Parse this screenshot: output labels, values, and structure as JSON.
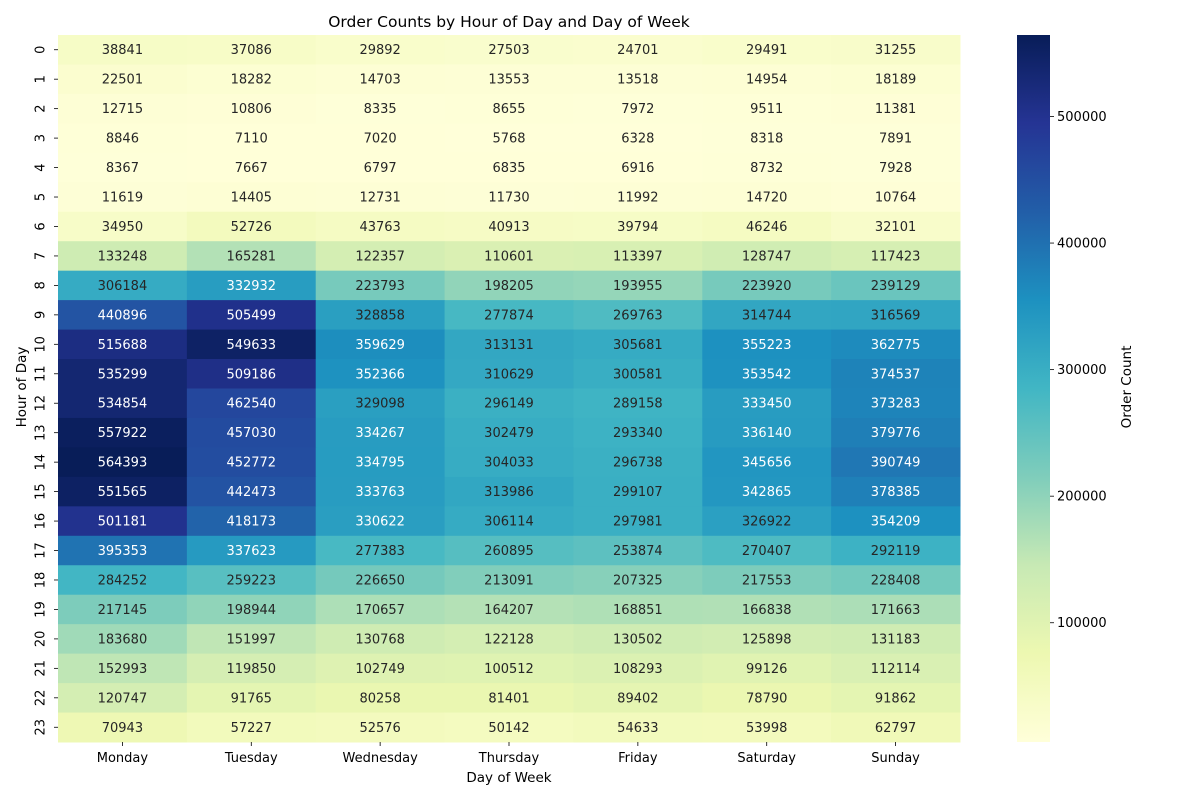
{
  "chart_data": {
    "type": "heatmap",
    "title": "Order Counts by Hour of Day and Day of Week",
    "xlabel": "Day of Week",
    "ylabel": "Hour of Day",
    "x_categories": [
      "Monday",
      "Tuesday",
      "Wednesday",
      "Thursday",
      "Friday",
      "Saturday",
      "Sunday"
    ],
    "y_categories": [
      "0",
      "1",
      "2",
      "3",
      "4",
      "5",
      "6",
      "7",
      "8",
      "9",
      "10",
      "11",
      "12",
      "13",
      "14",
      "15",
      "16",
      "17",
      "18",
      "19",
      "20",
      "21",
      "22",
      "23"
    ],
    "values": [
      [
        38841,
        37086,
        29892,
        27503,
        24701,
        29491,
        31255
      ],
      [
        22501,
        18282,
        14703,
        13553,
        13518,
        14954,
        18189
      ],
      [
        12715,
        10806,
        8335,
        8655,
        7972,
        9511,
        11381
      ],
      [
        8846,
        7110,
        7020,
        5768,
        6328,
        8318,
        7891
      ],
      [
        8367,
        7667,
        6797,
        6835,
        6916,
        8732,
        7928
      ],
      [
        11619,
        14405,
        12731,
        11730,
        11992,
        14720,
        10764
      ],
      [
        34950,
        52726,
        43763,
        40913,
        39794,
        46246,
        32101
      ],
      [
        133248,
        165281,
        122357,
        110601,
        113397,
        128747,
        117423
      ],
      [
        306184,
        332932,
        223793,
        198205,
        193955,
        223920,
        239129
      ],
      [
        440896,
        505499,
        328858,
        277874,
        269763,
        314744,
        316569
      ],
      [
        515688,
        549633,
        359629,
        313131,
        305681,
        355223,
        362775
      ],
      [
        535299,
        509186,
        352366,
        310629,
        300581,
        353542,
        374537
      ],
      [
        534854,
        462540,
        329098,
        296149,
        289158,
        333450,
        373283
      ],
      [
        557922,
        457030,
        334267,
        302479,
        293340,
        336140,
        379776
      ],
      [
        564393,
        452772,
        334795,
        304033,
        296738,
        345656,
        390749
      ],
      [
        551565,
        442473,
        333763,
        313986,
        299107,
        342865,
        378385
      ],
      [
        501181,
        418173,
        330622,
        306114,
        297981,
        326922,
        354209
      ],
      [
        395353,
        337623,
        277383,
        260895,
        253874,
        270407,
        292119
      ],
      [
        284252,
        259223,
        226650,
        213091,
        207325,
        217553,
        228408
      ],
      [
        217145,
        198944,
        170657,
        164207,
        168851,
        166838,
        171663
      ],
      [
        183680,
        151997,
        130768,
        122128,
        130502,
        125898,
        131183
      ],
      [
        152993,
        119850,
        102749,
        100512,
        108293,
        99126,
        112114
      ],
      [
        120747,
        91765,
        80258,
        81401,
        89402,
        78790,
        91862
      ],
      [
        70943,
        57227,
        52576,
        50142,
        54633,
        53998,
        62797
      ]
    ],
    "colormap": "YlGnBu",
    "colormap_stops": [
      "#ffffd9",
      "#edf8b1",
      "#c7e9b4",
      "#7fcdbb",
      "#41b6c4",
      "#1d91c0",
      "#225ea8",
      "#253494",
      "#081d58"
    ],
    "value_range": [
      5768,
      564393
    ],
    "colorbar": {
      "label": "Order Count",
      "ticks": [
        100000,
        200000,
        300000,
        400000,
        500000
      ],
      "tick_labels": [
        "100000",
        "200000",
        "300000",
        "400000",
        "500000"
      ]
    },
    "annotations": true,
    "grid": false
  }
}
